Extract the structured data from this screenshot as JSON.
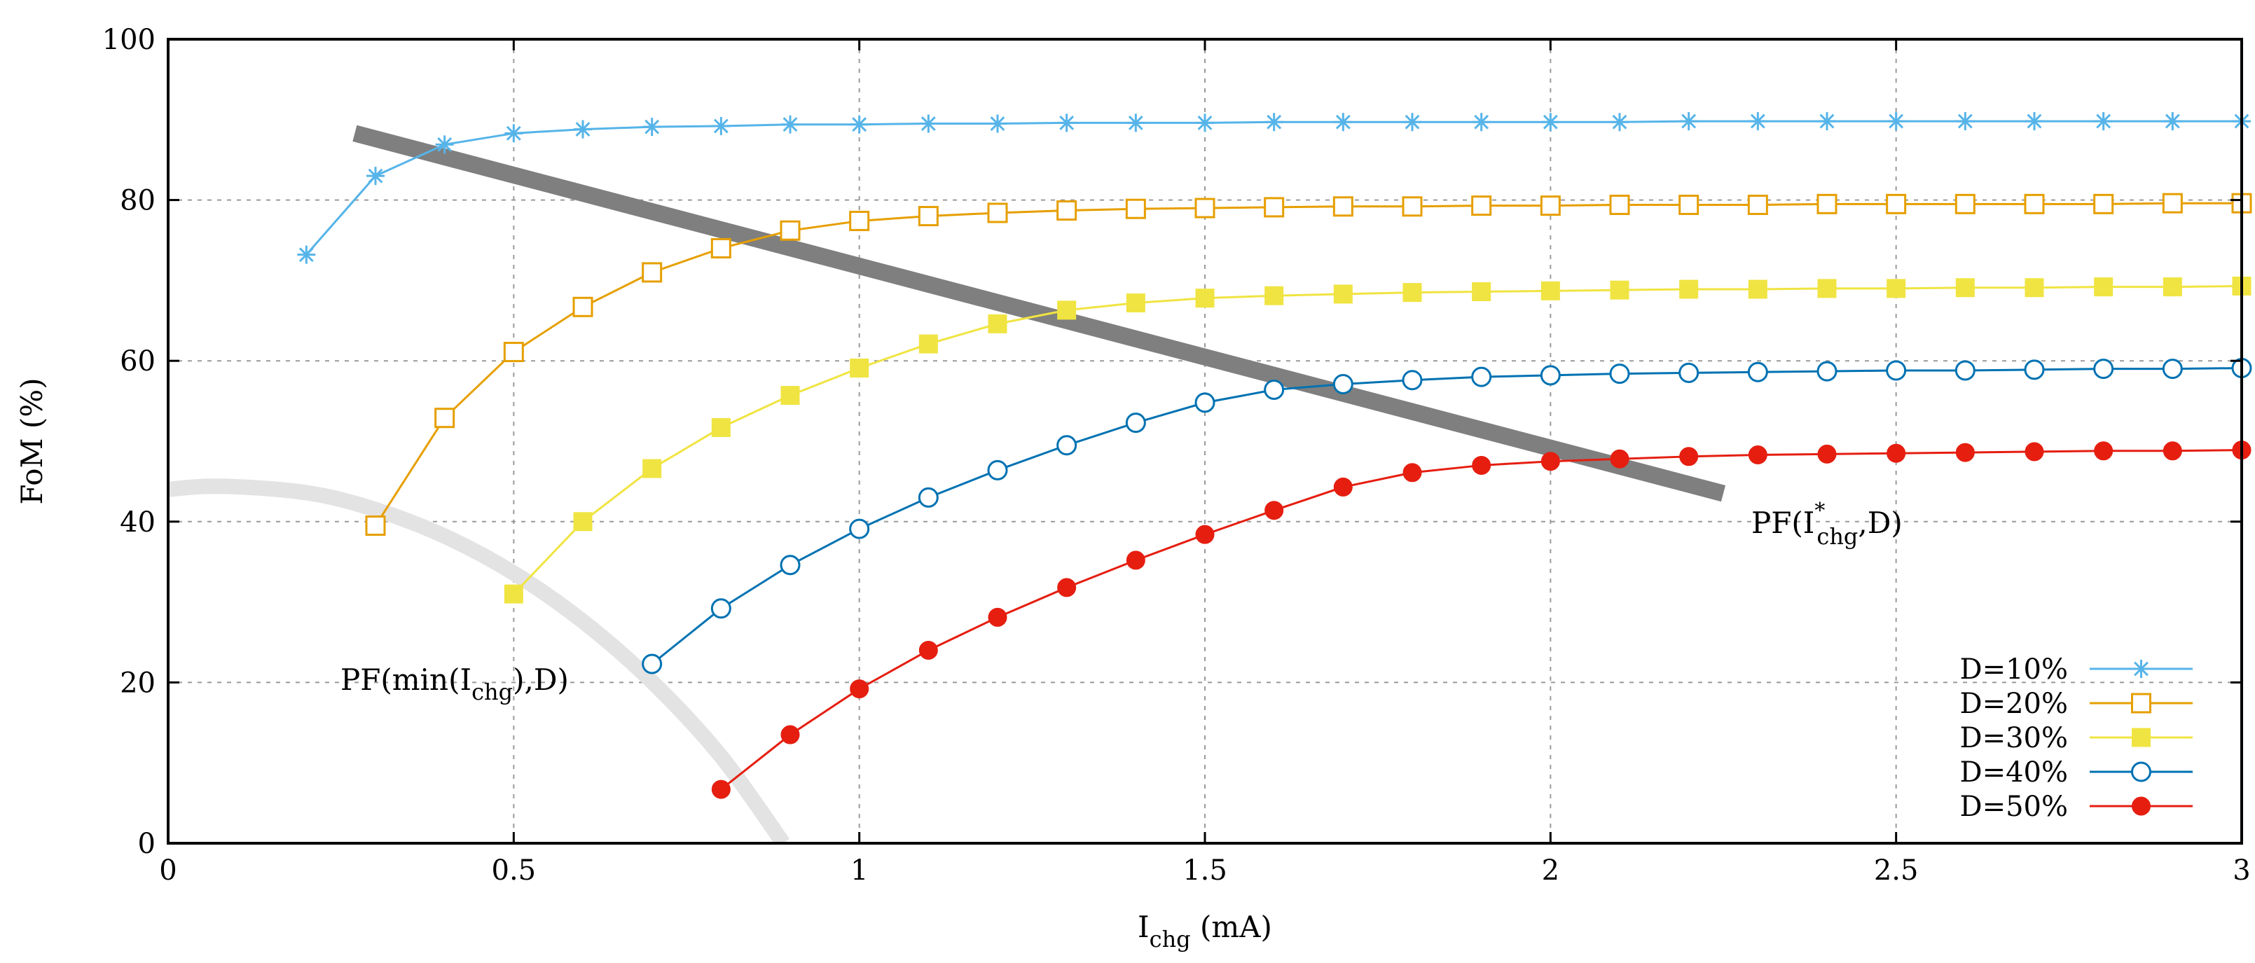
{
  "chart_data": {
    "type": "line",
    "title": "",
    "xlabel": {
      "main": "I",
      "sub": "chg",
      "unit": " (mA)"
    },
    "ylabel": "FoM (%)",
    "xlim": [
      0,
      3
    ],
    "ylim": [
      0,
      100
    ],
    "xticks": [
      0,
      0.5,
      1,
      1.5,
      2,
      2.5,
      3
    ],
    "xtick_labels": [
      "0",
      "0.5",
      "1",
      "1.5",
      "2",
      "2.5",
      "3"
    ],
    "yticks": [
      0,
      20,
      40,
      60,
      80,
      100
    ],
    "ytick_labels": [
      "0",
      "20",
      "40",
      "60",
      "80",
      "100"
    ],
    "grid": true,
    "legend_position": "bottom-right",
    "series": [
      {
        "name": "D=10%",
        "color": "#56b4e9",
        "marker": "star",
        "x": [
          0.2,
          0.3,
          0.4,
          0.5,
          0.6,
          0.7,
          0.8,
          0.9,
          1.0,
          1.1,
          1.2,
          1.3,
          1.4,
          1.5,
          1.6,
          1.7,
          1.8,
          1.9,
          2.0,
          2.1,
          2.2,
          2.3,
          2.4,
          2.5,
          2.6,
          2.7,
          2.8,
          2.9,
          3.0
        ],
        "y": [
          73.2,
          83.0,
          86.9,
          88.3,
          88.8,
          89.1,
          89.2,
          89.4,
          89.4,
          89.5,
          89.5,
          89.6,
          89.6,
          89.6,
          89.7,
          89.7,
          89.7,
          89.7,
          89.7,
          89.7,
          89.8,
          89.8,
          89.8,
          89.8,
          89.8,
          89.8,
          89.8,
          89.8,
          89.8
        ]
      },
      {
        "name": "D=20%",
        "color": "#e69f00",
        "marker": "open-square",
        "x": [
          0.3,
          0.4,
          0.5,
          0.6,
          0.7,
          0.8,
          0.9,
          1.0,
          1.1,
          1.2,
          1.3,
          1.4,
          1.5,
          1.6,
          1.7,
          1.8,
          1.9,
          2.0,
          2.1,
          2.2,
          2.3,
          2.4,
          2.5,
          2.6,
          2.7,
          2.8,
          2.9,
          3.0
        ],
        "y": [
          39.5,
          52.9,
          61.1,
          66.7,
          71.0,
          74.0,
          76.2,
          77.4,
          78.0,
          78.4,
          78.7,
          78.9,
          79.0,
          79.1,
          79.2,
          79.2,
          79.3,
          79.3,
          79.4,
          79.4,
          79.4,
          79.5,
          79.5,
          79.5,
          79.5,
          79.5,
          79.6,
          79.6
        ]
      },
      {
        "name": "D=30%",
        "color": "#f0e442",
        "marker": "filled-square",
        "x": [
          0.5,
          0.6,
          0.7,
          0.8,
          0.9,
          1.0,
          1.1,
          1.2,
          1.3,
          1.4,
          1.5,
          1.6,
          1.7,
          1.8,
          1.9,
          2.0,
          2.1,
          2.2,
          2.3,
          2.4,
          2.5,
          2.6,
          2.7,
          2.8,
          2.9,
          3.0
        ],
        "y": [
          31.0,
          40.0,
          46.6,
          51.7,
          55.7,
          59.1,
          62.1,
          64.6,
          66.3,
          67.2,
          67.8,
          68.1,
          68.3,
          68.5,
          68.6,
          68.7,
          68.8,
          68.9,
          68.9,
          69.0,
          69.0,
          69.1,
          69.1,
          69.2,
          69.2,
          69.3
        ]
      },
      {
        "name": "D=40%",
        "color": "#0072b2",
        "marker": "open-circle",
        "x": [
          0.7,
          0.8,
          0.9,
          1.0,
          1.1,
          1.2,
          1.3,
          1.4,
          1.5,
          1.6,
          1.7,
          1.8,
          1.9,
          2.0,
          2.1,
          2.2,
          2.3,
          2.4,
          2.5,
          2.6,
          2.7,
          2.8,
          2.9,
          3.0
        ],
        "y": [
          22.3,
          29.2,
          34.6,
          39.1,
          43.0,
          46.4,
          49.5,
          52.3,
          54.8,
          56.4,
          57.1,
          57.6,
          58.0,
          58.2,
          58.4,
          58.5,
          58.6,
          58.7,
          58.8,
          58.8,
          58.9,
          59.0,
          59.0,
          59.1
        ]
      },
      {
        "name": "D=50%",
        "color": "#e51e10",
        "marker": "filled-circle",
        "x": [
          0.8,
          0.9,
          1.0,
          1.1,
          1.2,
          1.3,
          1.4,
          1.5,
          1.6,
          1.7,
          1.8,
          1.9,
          2.0,
          2.1,
          2.2,
          2.3,
          2.4,
          2.5,
          2.6,
          2.7,
          2.8,
          2.9,
          3.0
        ],
        "y": [
          6.7,
          13.5,
          19.2,
          24.0,
          28.1,
          31.8,
          35.2,
          38.4,
          41.4,
          44.3,
          46.1,
          47.0,
          47.5,
          47.8,
          48.1,
          48.3,
          48.4,
          48.5,
          48.6,
          48.7,
          48.8,
          48.8,
          48.9
        ]
      }
    ],
    "pareto_fronts": [
      {
        "name": "PF(I*chg,D)",
        "label_parts": {
          "pre": "PF(I",
          "sup": "*",
          "sub": "chg",
          "post": ",D)"
        },
        "color": "#7f7f7f",
        "x": [
          0.27,
          2.25
        ],
        "y": [
          88.3,
          43.5
        ]
      },
      {
        "name": "PF(min(Ichg),D)",
        "label_parts": {
          "pre": "PF(min(I",
          "sub": "chg",
          "post": "),D)"
        },
        "color": "#e3e3e3",
        "x": [
          -0.02,
          0.07,
          0.2,
          0.3,
          0.4,
          0.5,
          0.6,
          0.7,
          0.8,
          0.89
        ],
        "y": [
          43.8,
          44.4,
          43.6,
          41.5,
          38.2,
          33.6,
          27.6,
          20.1,
          10.8,
          0.0
        ]
      }
    ]
  }
}
